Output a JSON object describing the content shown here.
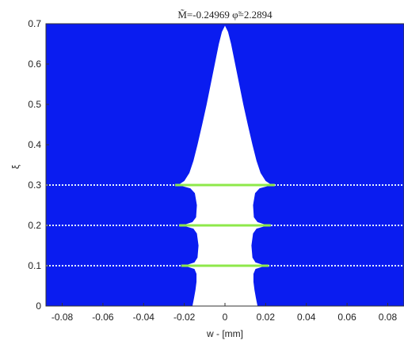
{
  "chart_data": {
    "type": "area",
    "title": "M̃=-0.24969  φ̃=2.2894",
    "xlabel": "w - [mm]",
    "ylabel": "ξ",
    "xlim": [
      -0.088,
      0.088
    ],
    "ylim": [
      0,
      0.7
    ],
    "x_ticks": [
      -0.08,
      -0.06,
      -0.04,
      -0.02,
      0,
      0.02,
      0.04,
      0.06,
      0.08
    ],
    "x_tick_labels": [
      "-0.08",
      "-0.06",
      "-0.04",
      "-0.02",
      "0",
      "0.02",
      "0.04",
      "0.06",
      "0.08"
    ],
    "y_ticks": [
      0,
      0.1,
      0.2,
      0.3,
      0.4,
      0.5,
      0.6,
      0.7
    ],
    "y_tick_labels": [
      "0",
      "0.1",
      "0.2",
      "0.3",
      "0.4",
      "0.5",
      "0.6",
      "0.7"
    ],
    "background_color": "#0a1cf0",
    "region_color": "#ffffff",
    "line_color": "#8ee84a",
    "dot_color": "#e6f2ff",
    "region_half_width": [
      [
        0.0,
        0.016
      ],
      [
        0.02,
        0.0152
      ],
      [
        0.04,
        0.0145
      ],
      [
        0.06,
        0.014
      ],
      [
        0.08,
        0.014
      ],
      [
        0.092,
        0.015
      ],
      [
        0.1,
        0.02
      ],
      [
        0.108,
        0.015
      ],
      [
        0.12,
        0.0135
      ],
      [
        0.15,
        0.013
      ],
      [
        0.18,
        0.0138
      ],
      [
        0.192,
        0.0155
      ],
      [
        0.2,
        0.021
      ],
      [
        0.208,
        0.016
      ],
      [
        0.22,
        0.0142
      ],
      [
        0.25,
        0.0138
      ],
      [
        0.28,
        0.0148
      ],
      [
        0.292,
        0.017
      ],
      [
        0.3,
        0.023
      ],
      [
        0.31,
        0.02
      ],
      [
        0.33,
        0.0175
      ],
      [
        0.36,
        0.0155
      ],
      [
        0.4,
        0.0135
      ],
      [
        0.45,
        0.0112
      ],
      [
        0.5,
        0.009
      ],
      [
        0.55,
        0.007
      ],
      [
        0.6,
        0.005
      ],
      [
        0.65,
        0.003
      ],
      [
        0.68,
        0.0015
      ],
      [
        0.695,
        0.0
      ]
    ],
    "horizontal_lines": [
      {
        "y": 0.1,
        "x_half": 0.0215
      },
      {
        "y": 0.2,
        "x_half": 0.0225
      },
      {
        "y": 0.3,
        "x_half": 0.0245
      }
    ],
    "grid": false
  }
}
